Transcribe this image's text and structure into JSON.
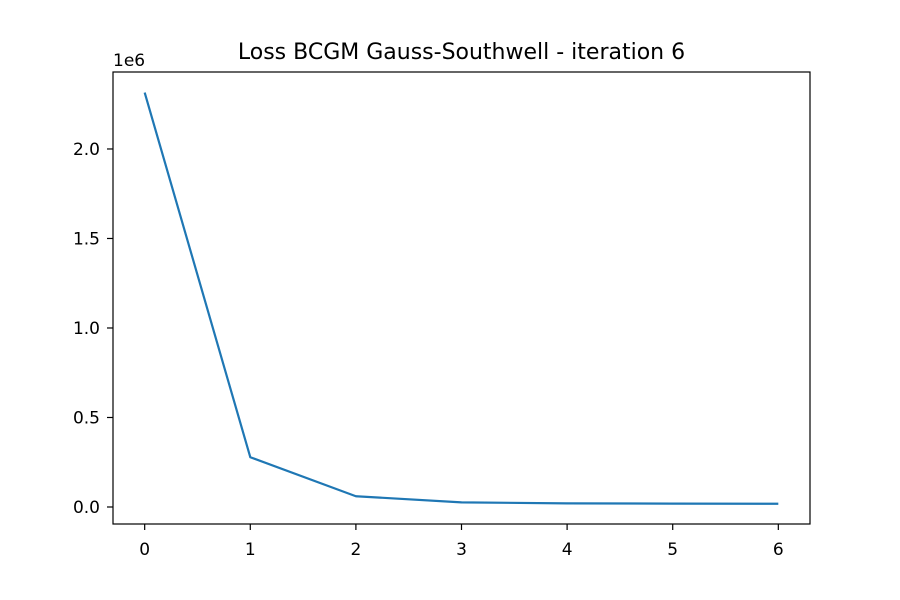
{
  "chart_data": {
    "type": "line",
    "title": "Loss BCGM Gauss-Southwell - iteration 6",
    "xlabel": "",
    "ylabel": "",
    "y_offset_label": "1e6",
    "x": [
      0,
      1,
      2,
      3,
      4,
      5,
      6
    ],
    "series": [
      {
        "values": [
          2315000,
          278000,
          60000,
          26000,
          20000,
          19000,
          18000
        ],
        "color": "#1f77b4"
      }
    ],
    "xlim": [
      -0.3,
      6.3
    ],
    "ylim": [
      -95000,
      2430000
    ],
    "x_ticks": [
      0,
      1,
      2,
      3,
      4,
      5,
      6
    ],
    "x_tick_labels": [
      "0",
      "1",
      "2",
      "3",
      "4",
      "5",
      "6"
    ],
    "y_ticks": [
      0,
      500000,
      1000000,
      1500000,
      2000000
    ],
    "y_tick_labels": [
      "0.0",
      "0.5",
      "1.0",
      "1.5",
      "2.0"
    ],
    "grid": false,
    "legend": "none"
  }
}
